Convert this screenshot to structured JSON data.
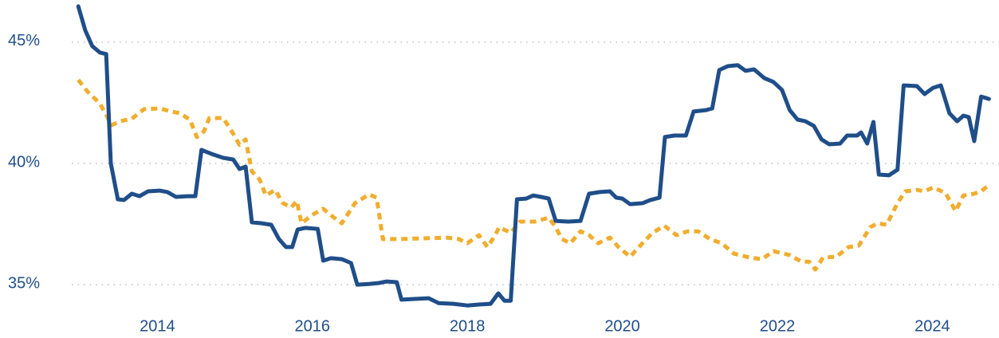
{
  "chart_data": {
    "type": "line",
    "xlim": [
      2011.97,
      2024.86
    ],
    "xticks": [
      2014,
      2016,
      2018,
      2020,
      2022,
      2024
    ],
    "ylim": [
      32.8,
      46.74
    ],
    "yticks": [
      {
        "value": 35,
        "label": "35%"
      },
      {
        "value": 40,
        "label": "40%"
      },
      {
        "value": 45,
        "label": "45%"
      }
    ],
    "grid": true,
    "series": [
      {
        "color": "#1f4e89",
        "dashed": false,
        "x": [
          2012.98,
          2013.07,
          2013.16,
          2013.26,
          2013.34,
          2013.4,
          2013.49,
          2013.57,
          2013.67,
          2013.77,
          2013.88,
          2014.03,
          2014.13,
          2014.24,
          2014.39,
          2014.49,
          2014.57,
          2014.7,
          2014.85,
          2014.98,
          2015.06,
          2015.14,
          2015.22,
          2015.35,
          2015.47,
          2015.57,
          2015.66,
          2015.74,
          2015.81,
          2015.91,
          2016.07,
          2016.14,
          2016.24,
          2016.38,
          2016.5,
          2016.58,
          2016.73,
          2016.86,
          2016.96,
          2017.09,
          2017.15,
          2017.32,
          2017.5,
          2017.63,
          2017.82,
          2018.0,
          2018.15,
          2018.3,
          2018.4,
          2018.48,
          2018.56,
          2018.64,
          2018.76,
          2018.85,
          2018.95,
          2019.05,
          2019.14,
          2019.3,
          2019.46,
          2019.57,
          2019.71,
          2019.84,
          2019.92,
          2020.0,
          2020.1,
          2020.26,
          2020.36,
          2020.48,
          2020.55,
          2020.67,
          2020.82,
          2020.92,
          2021.08,
          2021.16,
          2021.25,
          2021.36,
          2021.49,
          2021.59,
          2021.7,
          2021.83,
          2021.95,
          2022.06,
          2022.16,
          2022.26,
          2022.36,
          2022.47,
          2022.57,
          2022.67,
          2022.81,
          2022.9,
          2023.03,
          2023.08,
          2023.16,
          2023.24,
          2023.31,
          2023.44,
          2023.55,
          2023.63,
          2023.8,
          2023.9,
          2024.01,
          2024.11,
          2024.22,
          2024.32,
          2024.4,
          2024.47,
          2024.54,
          2024.63,
          2024.73
        ],
        "values": [
          46.48,
          45.49,
          44.84,
          44.57,
          44.51,
          40.0,
          38.52,
          38.49,
          38.75,
          38.65,
          38.85,
          38.88,
          38.82,
          38.62,
          38.65,
          38.65,
          40.56,
          40.39,
          40.23,
          40.16,
          39.77,
          39.87,
          37.57,
          37.53,
          37.47,
          36.88,
          36.55,
          36.55,
          37.27,
          37.34,
          37.3,
          35.99,
          36.09,
          36.05,
          35.89,
          35.0,
          35.03,
          35.07,
          35.13,
          35.1,
          34.38,
          34.41,
          34.44,
          34.24,
          34.21,
          34.14,
          34.18,
          34.21,
          34.64,
          34.34,
          34.34,
          38.52,
          38.55,
          38.68,
          38.62,
          38.55,
          37.63,
          37.6,
          37.63,
          38.75,
          38.82,
          38.85,
          38.59,
          38.55,
          38.32,
          38.36,
          38.49,
          38.59,
          41.09,
          41.15,
          41.15,
          42.14,
          42.2,
          42.27,
          43.85,
          44.01,
          44.05,
          43.82,
          43.88,
          43.52,
          43.36,
          43.03,
          42.2,
          41.81,
          41.74,
          41.55,
          40.99,
          40.79,
          40.82,
          41.15,
          41.15,
          41.28,
          40.82,
          41.71,
          39.54,
          39.51,
          39.74,
          43.22,
          43.19,
          42.86,
          43.12,
          43.22,
          42.07,
          41.74,
          41.97,
          41.91,
          40.92,
          42.76,
          42.66
        ]
      },
      {
        "color": "#f0ad2e",
        "dashed": true,
        "x": [
          2012.98,
          2013.1,
          2013.26,
          2013.41,
          2013.52,
          2013.67,
          2013.83,
          2014.03,
          2014.18,
          2014.29,
          2014.42,
          2014.51,
          2014.6,
          2014.67,
          2014.85,
          2014.98,
          2015.06,
          2015.14,
          2015.22,
          2015.32,
          2015.4,
          2015.52,
          2015.62,
          2015.73,
          2015.8,
          2015.86,
          2015.99,
          2016.14,
          2016.24,
          2016.38,
          2016.55,
          2016.73,
          2016.83,
          2016.91,
          2017.12,
          2017.43,
          2017.74,
          2017.89,
          2018.0,
          2018.15,
          2018.26,
          2018.36,
          2018.41,
          2018.56,
          2018.68,
          2018.87,
          2019.05,
          2019.14,
          2019.22,
          2019.33,
          2019.46,
          2019.57,
          2019.69,
          2019.84,
          2019.95,
          2020.1,
          2020.26,
          2020.39,
          2020.54,
          2020.7,
          2020.84,
          2020.98,
          2021.13,
          2021.28,
          2021.44,
          2021.64,
          2021.8,
          2021.95,
          2022.16,
          2022.31,
          2022.41,
          2022.49,
          2022.59,
          2022.76,
          2022.92,
          2023.05,
          2023.2,
          2023.29,
          2023.41,
          2023.55,
          2023.65,
          2023.8,
          2023.9,
          2024.01,
          2024.17,
          2024.3,
          2024.4,
          2024.54,
          2024.63,
          2024.73
        ],
        "values": [
          43.45,
          42.96,
          42.47,
          41.58,
          41.74,
          41.84,
          42.24,
          42.27,
          42.14,
          42.07,
          41.81,
          41.09,
          41.32,
          41.87,
          41.87,
          41.22,
          40.76,
          40.99,
          39.67,
          39.34,
          38.68,
          38.91,
          38.36,
          38.19,
          38.45,
          37.53,
          37.86,
          38.13,
          37.86,
          37.53,
          38.36,
          38.72,
          38.59,
          36.88,
          36.88,
          36.91,
          36.94,
          36.88,
          36.71,
          37.04,
          36.55,
          37.04,
          37.37,
          37.14,
          37.6,
          37.6,
          37.76,
          37.37,
          36.88,
          36.71,
          37.2,
          37.04,
          36.71,
          36.94,
          36.55,
          36.15,
          36.71,
          37.14,
          37.43,
          37.04,
          37.2,
          37.2,
          36.88,
          36.71,
          36.28,
          36.12,
          36.05,
          36.38,
          36.22,
          35.95,
          35.95,
          35.62,
          36.12,
          36.15,
          36.55,
          36.61,
          37.37,
          37.53,
          37.47,
          38.36,
          38.85,
          38.91,
          38.85,
          39.01,
          38.78,
          38.03,
          38.68,
          38.75,
          38.85,
          39.11
        ]
      }
    ]
  }
}
